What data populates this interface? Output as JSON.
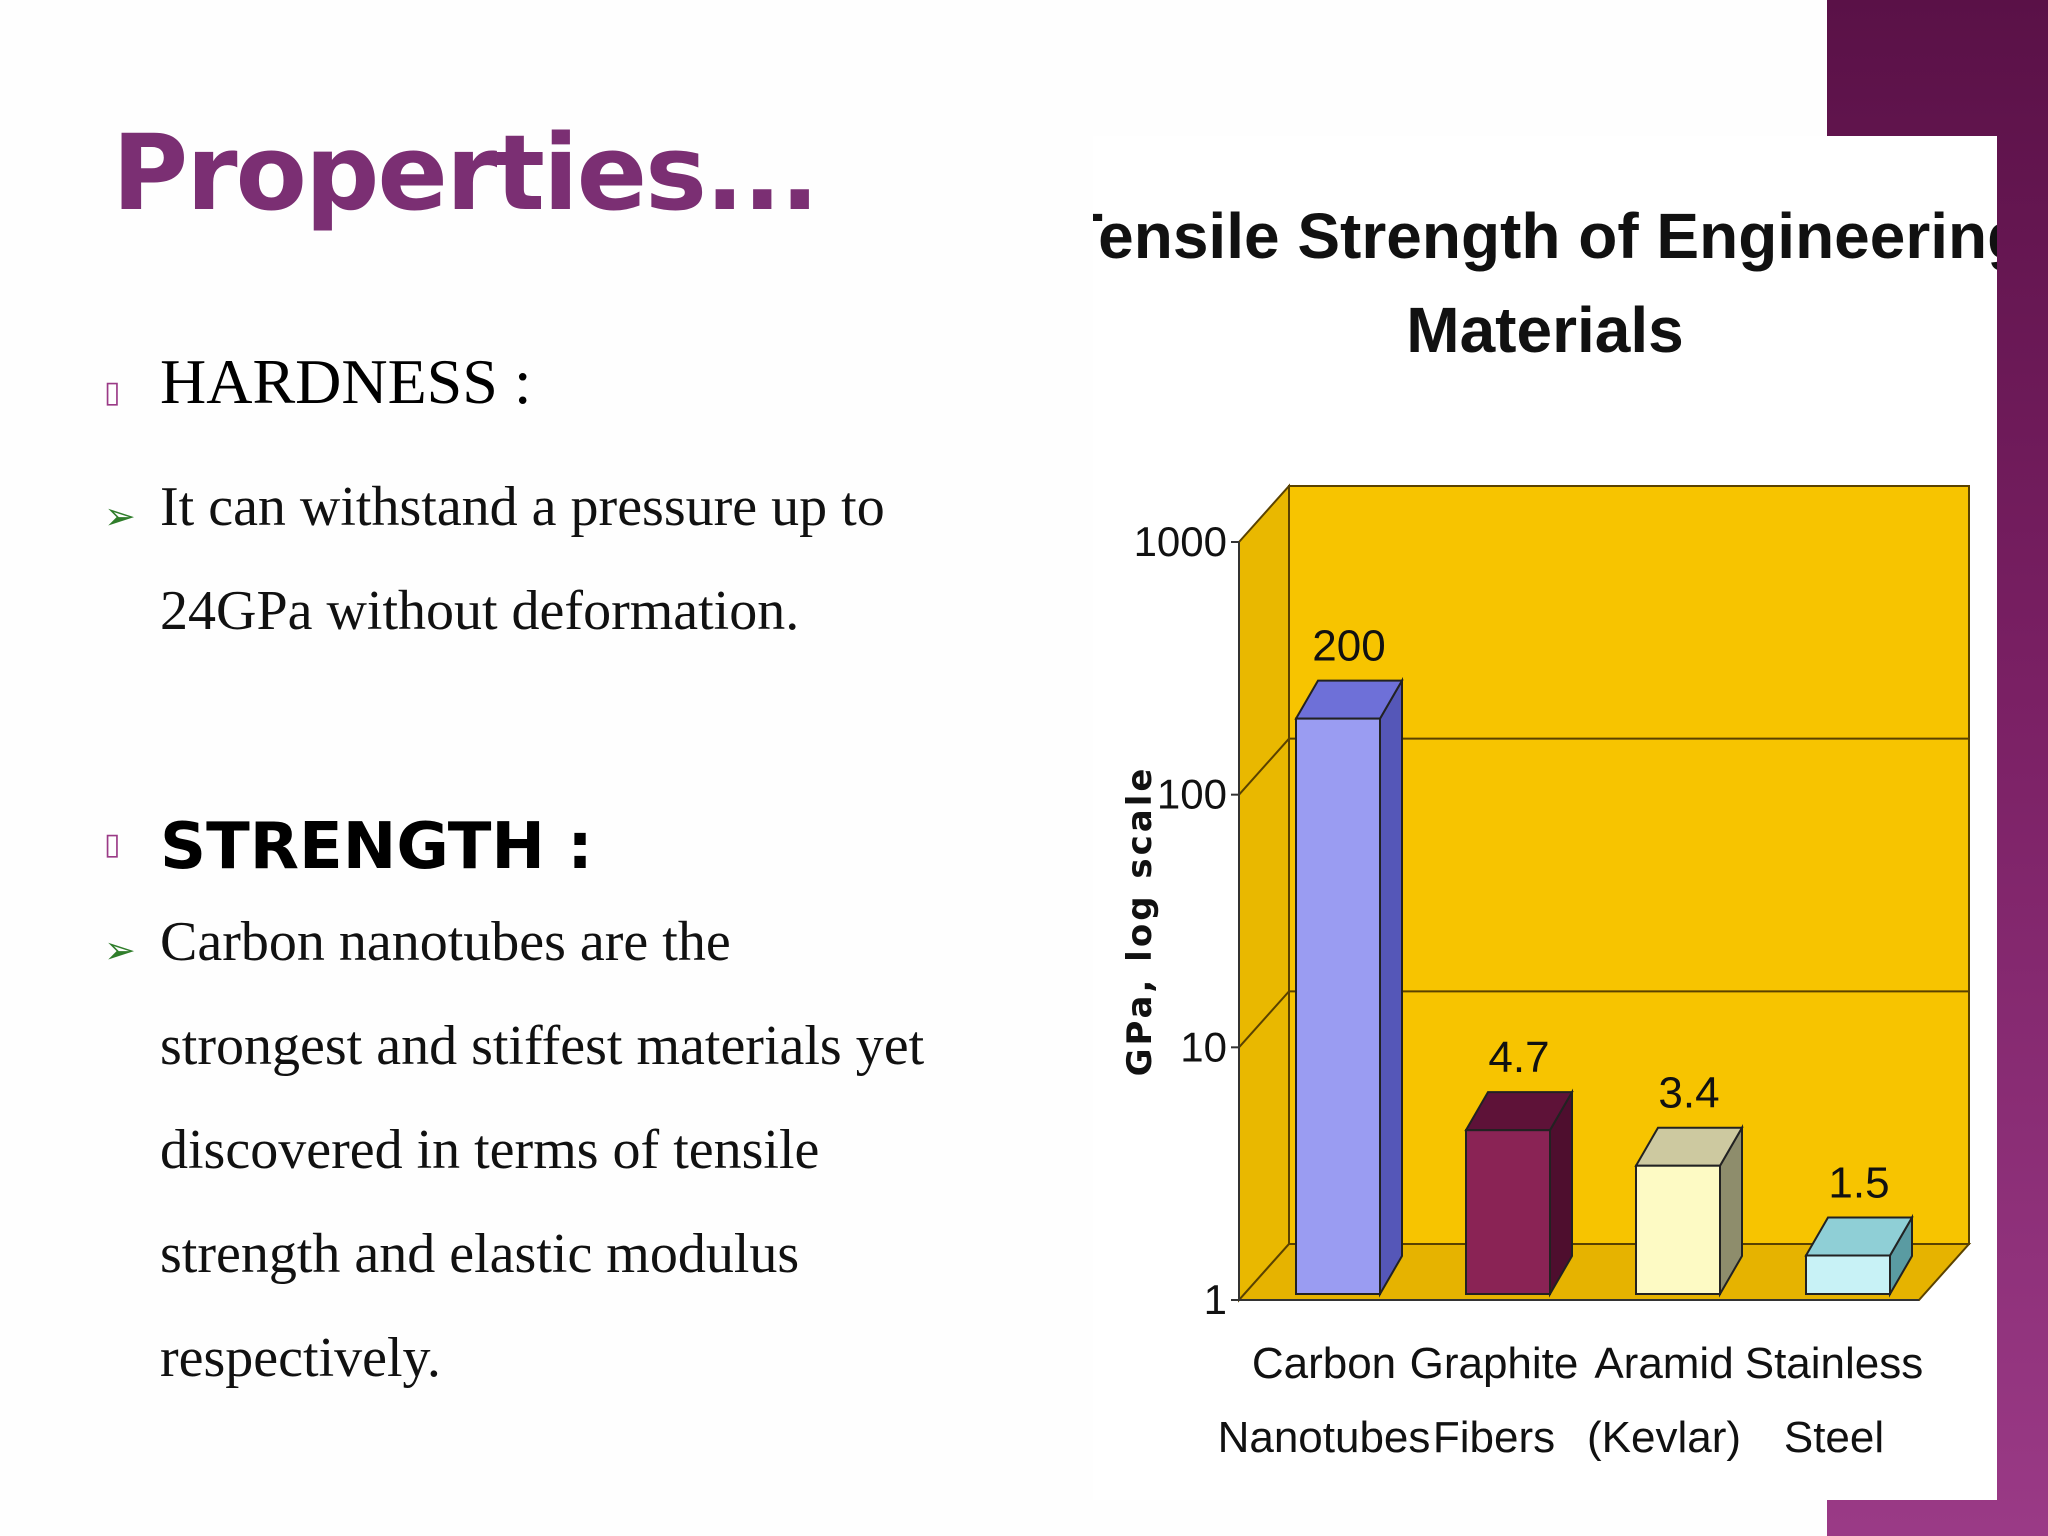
{
  "slide": {
    "title": "Properties...",
    "hardness": {
      "heading": "HARDNESS :",
      "lines": [
        "It can withstand a pressure up to",
        "24GPa without deformation."
      ]
    },
    "strength": {
      "heading": "STRENGTH :",
      "lines": [
        "Carbon nanotubes are the",
        "strongest and stiffest materials yet",
        "discovered in terms of tensile",
        "strength and elastic modulus",
        "respectively."
      ]
    },
    "bullet_square": "▯",
    "bullet_arrow": "➢"
  },
  "colors": {
    "title": "#7b2f73",
    "accent": "#7a2064",
    "chart_bg": "#f7c400",
    "chart_grid": "#5a4200"
  },
  "chart_data": {
    "type": "bar",
    "title_lines": [
      "Tensile Strength of Engineering",
      "Materials"
    ],
    "ylabel": "GPa, log scale",
    "y_scale": "log",
    "ylim": [
      1,
      1000
    ],
    "yticks": [
      1,
      10,
      100,
      1000
    ],
    "ytick_labels": [
      "1",
      "10",
      "100",
      "1000"
    ],
    "categories": [
      [
        "Carbon",
        "Nanotubes"
      ],
      [
        "Graphite",
        "Fibers"
      ],
      [
        "Aramid",
        "(Kevlar)"
      ],
      [
        "Stainless",
        "Steel"
      ]
    ],
    "values": [
      200,
      4.7,
      3.4,
      1.5
    ],
    "value_labels": [
      "200",
      "4.7",
      "3.4",
      "1.5"
    ],
    "bar_colors": [
      {
        "front": "#9a9cf2",
        "top": "#6e70d8",
        "side": "#5557b8"
      },
      {
        "front": "#8a2355",
        "top": "#5e1238",
        "side": "#4e0e2e"
      },
      {
        "front": "#fdfac4",
        "top": "#cdc9a0",
        "side": "#8e8d6c"
      },
      {
        "front": "#c8f2f6",
        "top": "#8fcfd6",
        "side": "#5a9ba2"
      }
    ]
  }
}
